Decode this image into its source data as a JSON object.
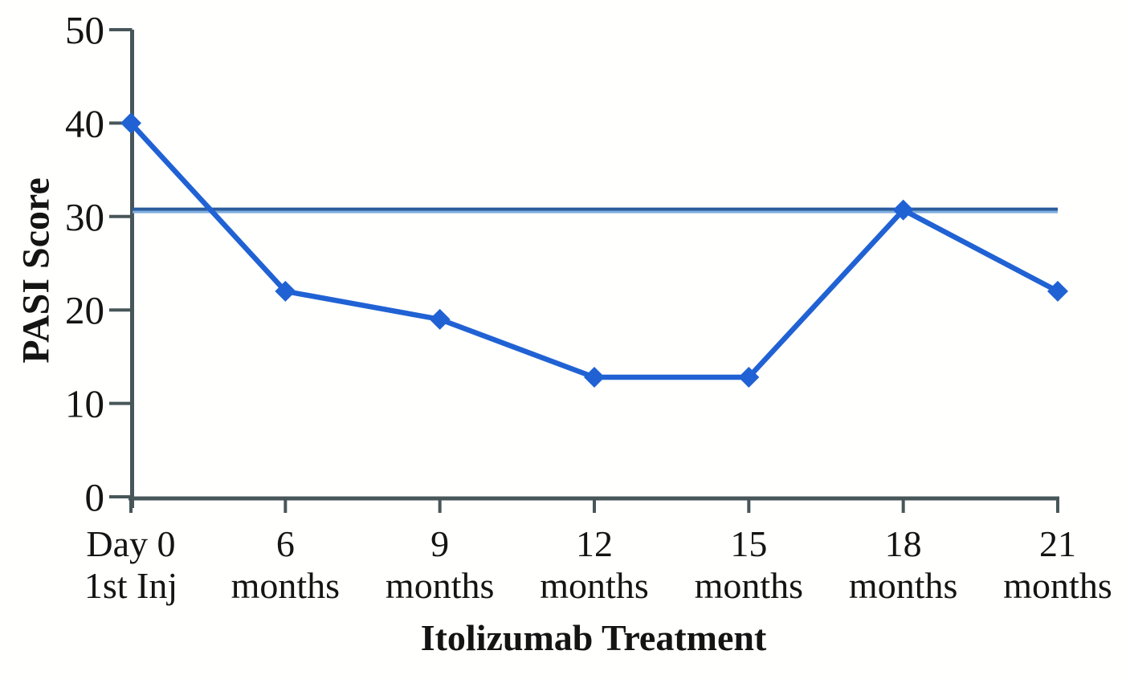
{
  "figure": {
    "background": "#ffffff"
  },
  "chart_data": {
    "type": "line",
    "title": "",
    "xlabel": "Itolizumab Treatment",
    "ylabel": "PASI Score",
    "ylim": [
      0,
      50
    ],
    "y_ticks": [
      0,
      10,
      20,
      30,
      40,
      50
    ],
    "grid": "off",
    "legend": "none",
    "categories": [
      {
        "line1": "Day 0",
        "line2": "1st Inj"
      },
      {
        "line1": "6",
        "line2": "months"
      },
      {
        "line1": "9",
        "line2": "months"
      },
      {
        "line1": "12",
        "line2": "months"
      },
      {
        "line1": "15",
        "line2": "months"
      },
      {
        "line1": "18",
        "line2": "months"
      },
      {
        "line1": "21",
        "line2": "months"
      }
    ],
    "series": [
      {
        "name": "PASI Score",
        "marker": "diamond",
        "values": [
          40,
          22,
          19,
          12.8,
          12.8,
          30.7,
          22
        ]
      }
    ],
    "reference_line": {
      "value": 30.7
    },
    "colors": {
      "series": "#2062d4",
      "reference_line": "#2b5c9d",
      "reference_line_edge": "#7fade0",
      "axis": "#475659",
      "text": "#141414"
    }
  }
}
